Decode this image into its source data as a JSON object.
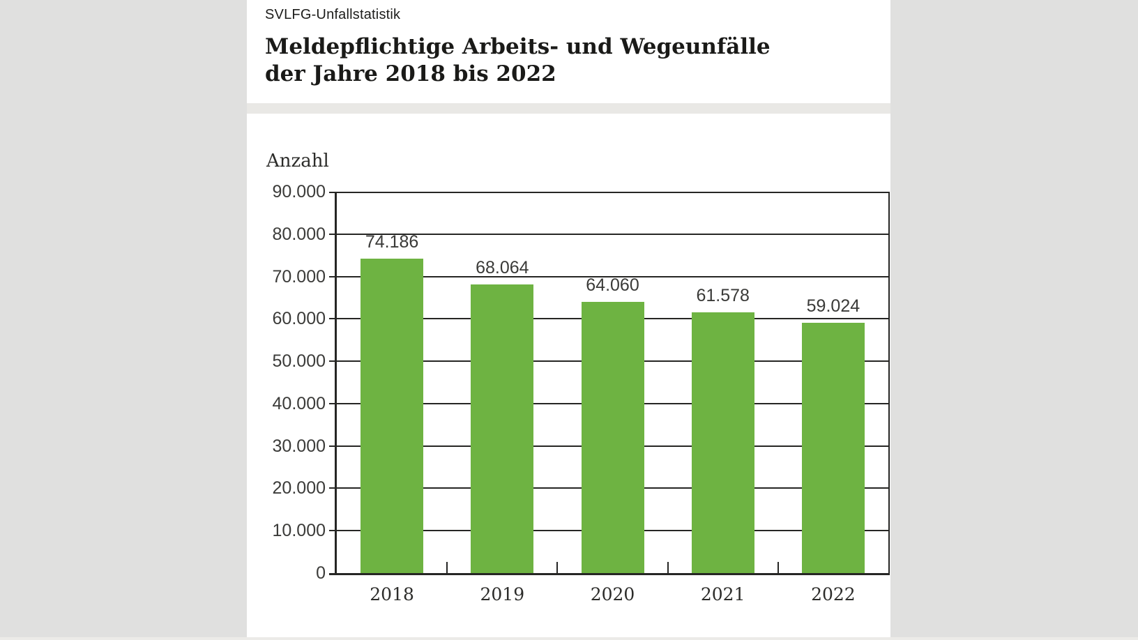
{
  "page": {
    "kicker": "SVLFG-Unfallstatistik"
  },
  "chart_data": {
    "type": "bar",
    "title": "Meldepflichtige Arbeits- und Wegeunfälle der Jahre 2018 bis 2022",
    "title_lines": [
      "Meldepflichtige Arbeits- und Wegeunfälle",
      "der Jahre 2018 bis 2022"
    ],
    "ylabel": "Anzahl",
    "xlabel": "",
    "categories": [
      "2018",
      "2019",
      "2020",
      "2021",
      "2022"
    ],
    "values": [
      74186,
      68064,
      64060,
      61578,
      59024
    ],
    "value_labels": [
      "74.186",
      "68.064",
      "64.060",
      "61.578",
      "59.024"
    ],
    "ylim": [
      0,
      90000
    ],
    "y_tick_step": 10000,
    "y_tick_labels": [
      "0",
      "10.000",
      "20.000",
      "30.000",
      "40.000",
      "50.000",
      "60.000",
      "70.000",
      "80.000",
      "90.000"
    ],
    "grid": true,
    "legend": "none",
    "colors": {
      "bar": "#6eb342",
      "grid": "#262624",
      "label_text": "#3a3a38",
      "title_text": "#1a1a18",
      "page_background": "#e0e0df",
      "card_background": "#ffffff",
      "band": "#e9e8e5"
    }
  }
}
